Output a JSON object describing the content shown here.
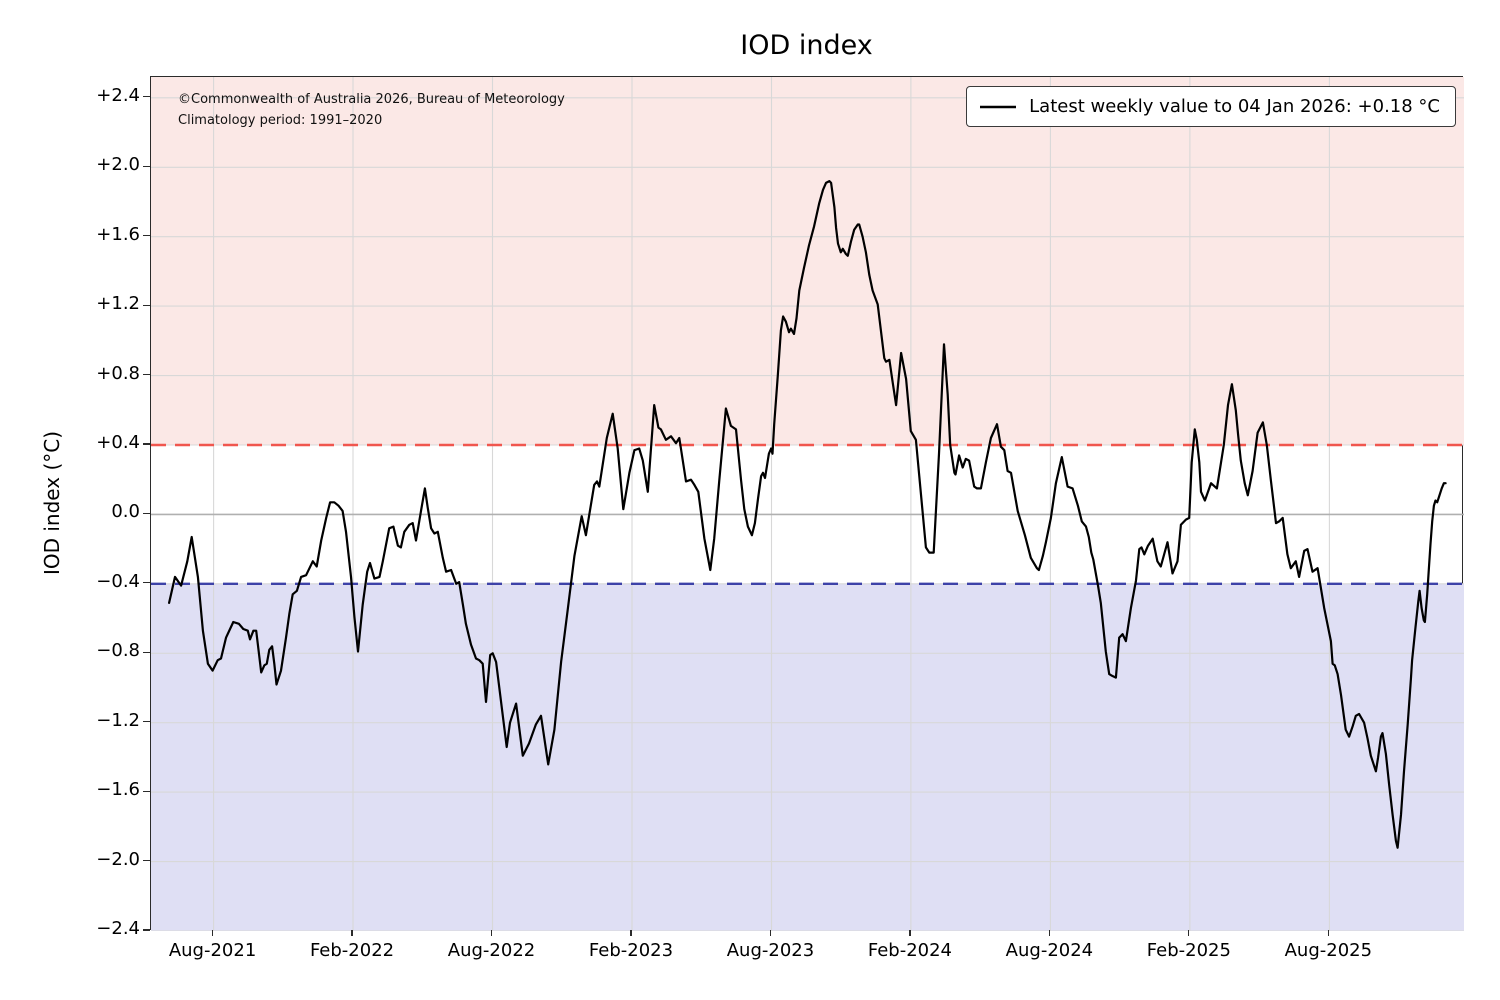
{
  "title": "IOD index",
  "annotation": {
    "line1": "©Commonwealth of Australia 2026, Bureau of Meteorology",
    "line2": "Climatology period: 1991–2020"
  },
  "legend": {
    "label": "Latest weekly value to 04 Jan 2026: +0.18 °C"
  },
  "y_axis": {
    "label": "IOD index (°C)",
    "ticks": [
      {
        "label": "+2.4",
        "value": 2.4
      },
      {
        "label": "+2.0",
        "value": 2.0
      },
      {
        "label": "+1.6",
        "value": 1.6
      },
      {
        "label": "+1.2",
        "value": 1.2
      },
      {
        "label": "+0.8",
        "value": 0.8
      },
      {
        "label": "+0.4",
        "value": 0.4
      },
      {
        "label": "0.0",
        "value": 0.0
      },
      {
        "label": "−0.4",
        "value": -0.4
      },
      {
        "label": "−0.8",
        "value": -0.8
      },
      {
        "label": "−1.2",
        "value": -1.2
      },
      {
        "label": "−1.6",
        "value": -1.6
      },
      {
        "label": "−2.0",
        "value": -2.0
      },
      {
        "label": "−2.4",
        "value": -2.4
      }
    ]
  },
  "x_axis": {
    "ticks": [
      {
        "label": "Aug-2021",
        "year": 2021.5833
      },
      {
        "label": "Feb-2022",
        "year": 2022.0833
      },
      {
        "label": "Aug-2022",
        "year": 2022.5833
      },
      {
        "label": "Feb-2023",
        "year": 2023.0833
      },
      {
        "label": "Aug-2023",
        "year": 2023.5833
      },
      {
        "label": "Feb-2024",
        "year": 2024.0833
      },
      {
        "label": "Aug-2024",
        "year": 2024.5833
      },
      {
        "label": "Feb-2025",
        "year": 2025.0833
      },
      {
        "label": "Aug-2025",
        "year": 2025.5833
      }
    ]
  },
  "thresholds": {
    "positive_value": 0.4,
    "negative_value": -0.4,
    "positive_color": "#f0564e",
    "negative_color": "#3d42a8"
  },
  "bands": {
    "positive_color": "#fbe8e6",
    "negative_color": "#dfdff4"
  },
  "grid": {
    "minor_color": "#d8d8d8",
    "zero_color": "#b0b0b0"
  },
  "chart_data": {
    "type": "line",
    "series_name": "Weekly IOD index value",
    "x_unit": "decimal_year",
    "x_range": [
      2021.359,
      2026.066
    ],
    "y_range": [
      -2.4,
      2.52
    ],
    "line_color": "#000000",
    "latest_value": 0.18,
    "latest_date": "04 Jan 2026",
    "points": [
      [
        2021.424,
        -0.51
      ],
      [
        2021.445,
        -0.36
      ],
      [
        2021.467,
        -0.41
      ],
      [
        2021.489,
        -0.27
      ],
      [
        2021.505,
        -0.13
      ],
      [
        2021.527,
        -0.36
      ],
      [
        2021.545,
        -0.67
      ],
      [
        2021.563,
        -0.86
      ],
      [
        2021.58,
        -0.9
      ],
      [
        2021.598,
        -0.84
      ],
      [
        2021.61,
        -0.83
      ],
      [
        2021.628,
        -0.71
      ],
      [
        2021.654,
        -0.62
      ],
      [
        2021.674,
        -0.63
      ],
      [
        2021.69,
        -0.66
      ],
      [
        2021.706,
        -0.67
      ],
      [
        2021.714,
        -0.72
      ],
      [
        2021.726,
        -0.67
      ],
      [
        2021.736,
        -0.67
      ],
      [
        2021.745,
        -0.79
      ],
      [
        2021.754,
        -0.91
      ],
      [
        2021.765,
        -0.87
      ],
      [
        2021.774,
        -0.86
      ],
      [
        2021.783,
        -0.78
      ],
      [
        2021.793,
        -0.76
      ],
      [
        2021.801,
        -0.86
      ],
      [
        2021.809,
        -0.98
      ],
      [
        2021.825,
        -0.9
      ],
      [
        2021.843,
        -0.71
      ],
      [
        2021.855,
        -0.57
      ],
      [
        2021.867,
        -0.46
      ],
      [
        2021.882,
        -0.44
      ],
      [
        2021.897,
        -0.36
      ],
      [
        2021.915,
        -0.35
      ],
      [
        2021.939,
        -0.27
      ],
      [
        2021.953,
        -0.3
      ],
      [
        2021.969,
        -0.15
      ],
      [
        2021.987,
        -0.02
      ],
      [
        2022.001,
        0.07
      ],
      [
        2022.016,
        0.07
      ],
      [
        2022.031,
        0.05
      ],
      [
        2022.046,
        0.02
      ],
      [
        2022.058,
        -0.1
      ],
      [
        2022.076,
        -0.36
      ],
      [
        2022.088,
        -0.59
      ],
      [
        2022.101,
        -0.79
      ],
      [
        2022.118,
        -0.52
      ],
      [
        2022.134,
        -0.33
      ],
      [
        2022.144,
        -0.28
      ],
      [
        2022.16,
        -0.37
      ],
      [
        2022.178,
        -0.36
      ],
      [
        2022.19,
        -0.27
      ],
      [
        2022.213,
        -0.08
      ],
      [
        2022.228,
        -0.07
      ],
      [
        2022.244,
        -0.18
      ],
      [
        2022.255,
        -0.19
      ],
      [
        2022.267,
        -0.1
      ],
      [
        2022.285,
        -0.06
      ],
      [
        2022.297,
        -0.05
      ],
      [
        2022.309,
        -0.15
      ],
      [
        2022.327,
        0.02
      ],
      [
        2022.341,
        0.15
      ],
      [
        2022.351,
        0.04
      ],
      [
        2022.363,
        -0.08
      ],
      [
        2022.375,
        -0.11
      ],
      [
        2022.387,
        -0.1
      ],
      [
        2022.405,
        -0.25
      ],
      [
        2022.417,
        -0.33
      ],
      [
        2022.435,
        -0.32
      ],
      [
        2022.453,
        -0.4
      ],
      [
        2022.464,
        -0.39
      ],
      [
        2022.477,
        -0.52
      ],
      [
        2022.488,
        -0.63
      ],
      [
        2022.506,
        -0.75
      ],
      [
        2022.524,
        -0.83
      ],
      [
        2022.536,
        -0.84
      ],
      [
        2022.548,
        -0.86
      ],
      [
        2022.56,
        -1.08
      ],
      [
        2022.575,
        -0.81
      ],
      [
        2022.584,
        -0.8
      ],
      [
        2022.596,
        -0.85
      ],
      [
        2022.634,
        -1.34
      ],
      [
        2022.646,
        -1.2
      ],
      [
        2022.668,
        -1.09
      ],
      [
        2022.692,
        -1.39
      ],
      [
        2022.714,
        -1.32
      ],
      [
        2022.739,
        -1.21
      ],
      [
        2022.757,
        -1.16
      ],
      [
        2022.783,
        -1.44
      ],
      [
        2022.805,
        -1.24
      ],
      [
        2022.829,
        -0.85
      ],
      [
        2022.853,
        -0.55
      ],
      [
        2022.877,
        -0.24
      ],
      [
        2022.903,
        -0.01
      ],
      [
        2022.918,
        -0.12
      ],
      [
        2022.948,
        0.17
      ],
      [
        2022.958,
        0.19
      ],
      [
        2022.966,
        0.16
      ],
      [
        2022.993,
        0.44
      ],
      [
        2023.014,
        0.58
      ],
      [
        2023.032,
        0.38
      ],
      [
        2023.052,
        0.03
      ],
      [
        2023.074,
        0.24
      ],
      [
        2023.092,
        0.37
      ],
      [
        2023.109,
        0.38
      ],
      [
        2023.122,
        0.31
      ],
      [
        2023.14,
        0.13
      ],
      [
        2023.163,
        0.63
      ],
      [
        2023.178,
        0.5
      ],
      [
        2023.187,
        0.49
      ],
      [
        2023.205,
        0.43
      ],
      [
        2023.223,
        0.45
      ],
      [
        2023.241,
        0.41
      ],
      [
        2023.253,
        0.44
      ],
      [
        2023.277,
        0.19
      ],
      [
        2023.295,
        0.2
      ],
      [
        2023.307,
        0.17
      ],
      [
        2023.321,
        0.13
      ],
      [
        2023.343,
        -0.14
      ],
      [
        2023.364,
        -0.32
      ],
      [
        2023.378,
        -0.14
      ],
      [
        2023.396,
        0.19
      ],
      [
        2023.42,
        0.61
      ],
      [
        2023.438,
        0.51
      ],
      [
        2023.456,
        0.49
      ],
      [
        2023.474,
        0.2
      ],
      [
        2023.486,
        0.03
      ],
      [
        2023.499,
        -0.07
      ],
      [
        2023.513,
        -0.12
      ],
      [
        2023.524,
        -0.05
      ],
      [
        2023.535,
        0.09
      ],
      [
        2023.546,
        0.22
      ],
      [
        2023.553,
        0.24
      ],
      [
        2023.56,
        0.21
      ],
      [
        2023.574,
        0.35
      ],
      [
        2023.582,
        0.38
      ],
      [
        2023.587,
        0.35
      ],
      [
        2023.593,
        0.52
      ],
      [
        2023.606,
        0.8
      ],
      [
        2023.617,
        1.06
      ],
      [
        2023.625,
        1.14
      ],
      [
        2023.635,
        1.11
      ],
      [
        2023.646,
        1.05
      ],
      [
        2023.653,
        1.07
      ],
      [
        2023.664,
        1.04
      ],
      [
        2023.673,
        1.13
      ],
      [
        2023.683,
        1.29
      ],
      [
        2023.7,
        1.42
      ],
      [
        2023.718,
        1.55
      ],
      [
        2023.736,
        1.66
      ],
      [
        2023.754,
        1.79
      ],
      [
        2023.768,
        1.87
      ],
      [
        2023.779,
        1.91
      ],
      [
        2023.791,
        1.92
      ],
      [
        2023.797,
        1.91
      ],
      [
        2023.809,
        1.77
      ],
      [
        2023.815,
        1.65
      ],
      [
        2023.822,
        1.56
      ],
      [
        2023.832,
        1.51
      ],
      [
        2023.839,
        1.53
      ],
      [
        2023.85,
        1.5
      ],
      [
        2023.857,
        1.49
      ],
      [
        2023.868,
        1.57
      ],
      [
        2023.88,
        1.64
      ],
      [
        2023.893,
        1.67
      ],
      [
        2023.898,
        1.67
      ],
      [
        2023.91,
        1.6
      ],
      [
        2023.922,
        1.51
      ],
      [
        2023.934,
        1.38
      ],
      [
        2023.946,
        1.29
      ],
      [
        2023.964,
        1.21
      ],
      [
        2023.988,
        0.9
      ],
      [
        2023.994,
        0.88
      ],
      [
        2024.006,
        0.89
      ],
      [
        2024.018,
        0.76
      ],
      [
        2024.03,
        0.63
      ],
      [
        2024.048,
        0.93
      ],
      [
        2024.066,
        0.78
      ],
      [
        2024.083,
        0.48
      ],
      [
        2024.101,
        0.43
      ],
      [
        2024.119,
        0.12
      ],
      [
        2024.137,
        -0.19
      ],
      [
        2024.149,
        -0.22
      ],
      [
        2024.165,
        -0.22
      ],
      [
        2024.184,
        0.35
      ],
      [
        2024.202,
        0.98
      ],
      [
        2024.215,
        0.69
      ],
      [
        2024.224,
        0.4
      ],
      [
        2024.239,
        0.24
      ],
      [
        2024.243,
        0.23
      ],
      [
        2024.256,
        0.34
      ],
      [
        2024.269,
        0.27
      ],
      [
        2024.28,
        0.32
      ],
      [
        2024.292,
        0.31
      ],
      [
        2024.31,
        0.16
      ],
      [
        2024.32,
        0.15
      ],
      [
        2024.334,
        0.15
      ],
      [
        2024.352,
        0.3
      ],
      [
        2024.37,
        0.44
      ],
      [
        2024.392,
        0.52
      ],
      [
        2024.406,
        0.39
      ],
      [
        2024.418,
        0.37
      ],
      [
        2024.43,
        0.25
      ],
      [
        2024.442,
        0.24
      ],
      [
        2024.466,
        0.02
      ],
      [
        2024.492,
        -0.12
      ],
      [
        2024.513,
        -0.25
      ],
      [
        2024.535,
        -0.31
      ],
      [
        2024.542,
        -0.32
      ],
      [
        2024.556,
        -0.24
      ],
      [
        2024.567,
        -0.16
      ],
      [
        2024.585,
        -0.02
      ],
      [
        2024.603,
        0.18
      ],
      [
        2024.624,
        0.33
      ],
      [
        2024.645,
        0.16
      ],
      [
        2024.663,
        0.15
      ],
      [
        2024.682,
        0.05
      ],
      [
        2024.696,
        -0.04
      ],
      [
        2024.711,
        -0.07
      ],
      [
        2024.721,
        -0.13
      ],
      [
        2024.73,
        -0.22
      ],
      [
        2024.737,
        -0.26
      ],
      [
        2024.754,
        -0.41
      ],
      [
        2024.764,
        -0.51
      ],
      [
        2024.782,
        -0.79
      ],
      [
        2024.794,
        -0.92
      ],
      [
        2024.804,
        -0.93
      ],
      [
        2024.818,
        -0.94
      ],
      [
        2024.83,
        -0.71
      ],
      [
        2024.842,
        -0.69
      ],
      [
        2024.854,
        -0.73
      ],
      [
        2024.872,
        -0.54
      ],
      [
        2024.89,
        -0.38
      ],
      [
        2024.902,
        -0.2
      ],
      [
        2024.91,
        -0.19
      ],
      [
        2024.92,
        -0.23
      ],
      [
        2024.933,
        -0.18
      ],
      [
        2024.95,
        -0.14
      ],
      [
        2024.967,
        -0.27
      ],
      [
        2024.979,
        -0.3
      ],
      [
        2025.003,
        -0.16
      ],
      [
        2025.021,
        -0.34
      ],
      [
        2025.039,
        -0.27
      ],
      [
        2025.051,
        -0.06
      ],
      [
        2025.069,
        -0.03
      ],
      [
        2025.081,
        -0.02
      ],
      [
        2025.09,
        0.3
      ],
      [
        2025.101,
        0.49
      ],
      [
        2025.108,
        0.43
      ],
      [
        2025.117,
        0.3
      ],
      [
        2025.123,
        0.13
      ],
      [
        2025.137,
        0.08
      ],
      [
        2025.159,
        0.18
      ],
      [
        2025.18,
        0.15
      ],
      [
        2025.205,
        0.4
      ],
      [
        2025.22,
        0.63
      ],
      [
        2025.234,
        0.75
      ],
      [
        2025.248,
        0.6
      ],
      [
        2025.256,
        0.46
      ],
      [
        2025.266,
        0.31
      ],
      [
        2025.28,
        0.18
      ],
      [
        2025.291,
        0.11
      ],
      [
        2025.308,
        0.25
      ],
      [
        2025.326,
        0.47
      ],
      [
        2025.345,
        0.53
      ],
      [
        2025.359,
        0.4
      ],
      [
        2025.374,
        0.19
      ],
      [
        2025.392,
        -0.05
      ],
      [
        2025.403,
        -0.04
      ],
      [
        2025.416,
        -0.02
      ],
      [
        2025.433,
        -0.23
      ],
      [
        2025.445,
        -0.31
      ],
      [
        2025.463,
        -0.27
      ],
      [
        2025.475,
        -0.36
      ],
      [
        2025.493,
        -0.21
      ],
      [
        2025.505,
        -0.2
      ],
      [
        2025.523,
        -0.33
      ],
      [
        2025.541,
        -0.31
      ],
      [
        2025.565,
        -0.54
      ],
      [
        2025.589,
        -0.73
      ],
      [
        2025.595,
        -0.86
      ],
      [
        2025.603,
        -0.87
      ],
      [
        2025.613,
        -0.92
      ],
      [
        2025.625,
        -1.04
      ],
      [
        2025.642,
        -1.24
      ],
      [
        2025.654,
        -1.28
      ],
      [
        2025.667,
        -1.22
      ],
      [
        2025.678,
        -1.16
      ],
      [
        2025.69,
        -1.15
      ],
      [
        2025.708,
        -1.2
      ],
      [
        2025.72,
        -1.29
      ],
      [
        2025.732,
        -1.39
      ],
      [
        2025.75,
        -1.48
      ],
      [
        2025.758,
        -1.4
      ],
      [
        2025.768,
        -1.28
      ],
      [
        2025.774,
        -1.26
      ],
      [
        2025.786,
        -1.38
      ],
      [
        2025.798,
        -1.56
      ],
      [
        2025.81,
        -1.73
      ],
      [
        2025.822,
        -1.88
      ],
      [
        2025.828,
        -1.92
      ],
      [
        2025.84,
        -1.73
      ],
      [
        2025.851,
        -1.48
      ],
      [
        2025.864,
        -1.21
      ],
      [
        2025.876,
        -0.94
      ],
      [
        2025.88,
        -0.84
      ],
      [
        2025.892,
        -0.65
      ],
      [
        2025.902,
        -0.5
      ],
      [
        2025.907,
        -0.44
      ],
      [
        2025.914,
        -0.54
      ],
      [
        2025.922,
        -0.61
      ],
      [
        2025.926,
        -0.62
      ],
      [
        2025.934,
        -0.46
      ],
      [
        2025.94,
        -0.31
      ],
      [
        2025.946,
        -0.17
      ],
      [
        2025.952,
        -0.04
      ],
      [
        2025.958,
        0.05
      ],
      [
        2025.964,
        0.08
      ],
      [
        2025.97,
        0.07
      ],
      [
        2025.976,
        0.1
      ],
      [
        2025.986,
        0.15
      ],
      [
        2025.994,
        0.18
      ],
      [
        2026.0,
        0.18
      ]
    ]
  }
}
